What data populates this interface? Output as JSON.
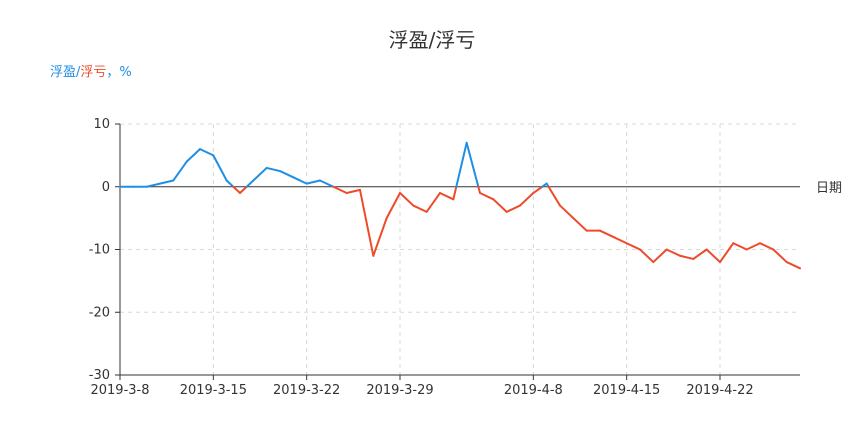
{
  "chart_data": {
    "type": "line",
    "title": "浮盈/浮亏",
    "ylabel_parts": [
      {
        "text": "浮盈",
        "color": "#1f8fe5"
      },
      {
        "text": "/",
        "color": "#1f8fe5"
      },
      {
        "text": "浮亏",
        "color": "#ee4b2b"
      },
      {
        "text": "，%",
        "color": "#1f8fe5"
      }
    ],
    "xlabel": "日期",
    "ylim": [
      -30,
      10
    ],
    "yticks": [
      10,
      0,
      -10,
      -20,
      -30
    ],
    "xlim": [
      "2019-03-08",
      "2019-04-28"
    ],
    "xticks": [
      {
        "date": "2019-03-08",
        "label": "2019-3-8"
      },
      {
        "date": "2019-03-15",
        "label": "2019-3-15"
      },
      {
        "date": "2019-03-22",
        "label": "2019-3-22"
      },
      {
        "date": "2019-03-29",
        "label": "2019-3-29"
      },
      {
        "date": "2019-04-08",
        "label": "2019-4-8"
      },
      {
        "date": "2019-04-15",
        "label": "2019-4-15"
      },
      {
        "date": "2019-04-22",
        "label": "2019-4-22"
      }
    ],
    "grid": true,
    "colors": {
      "positive": "#1f8fe5",
      "negative": "#ee4b2b",
      "axis": "#333333",
      "grid": "#d9d9d9"
    },
    "series": [
      {
        "x": [
          "2019-03-08",
          "2019-03-09",
          "2019-03-10",
          "2019-03-11",
          "2019-03-12",
          "2019-03-13",
          "2019-03-14",
          "2019-03-15",
          "2019-03-16",
          "2019-03-17",
          "2019-03-18",
          "2019-03-19",
          "2019-03-20",
          "2019-03-21",
          "2019-03-22",
          "2019-03-23",
          "2019-03-24",
          "2019-03-25",
          "2019-03-26",
          "2019-03-27",
          "2019-03-28",
          "2019-03-29",
          "2019-03-30",
          "2019-03-31",
          "2019-04-01",
          "2019-04-02",
          "2019-04-03",
          "2019-04-04",
          "2019-04-05",
          "2019-04-06",
          "2019-04-07",
          "2019-04-08",
          "2019-04-09",
          "2019-04-10",
          "2019-04-11",
          "2019-04-12",
          "2019-04-13",
          "2019-04-14",
          "2019-04-15",
          "2019-04-16",
          "2019-04-17",
          "2019-04-18",
          "2019-04-19",
          "2019-04-20",
          "2019-04-21",
          "2019-04-22",
          "2019-04-23",
          "2019-04-24",
          "2019-04-25",
          "2019-04-26",
          "2019-04-27",
          "2019-04-28"
        ],
        "values": [
          0,
          0,
          0,
          0.5,
          1,
          4,
          6,
          5,
          1,
          -1,
          1,
          3,
          2.5,
          1.5,
          0.5,
          1,
          0,
          -1,
          -0.5,
          -11,
          -5,
          -1,
          -3,
          -4,
          -1,
          -2,
          7,
          -1,
          -2,
          -4,
          -3,
          -1,
          0.5,
          -3,
          -5,
          -7,
          -7,
          -8,
          -9,
          -10,
          -12,
          -10,
          -11,
          -11.5,
          -10,
          -12,
          -9,
          -10,
          -9,
          -10,
          -12,
          -13
        ]
      }
    ]
  }
}
